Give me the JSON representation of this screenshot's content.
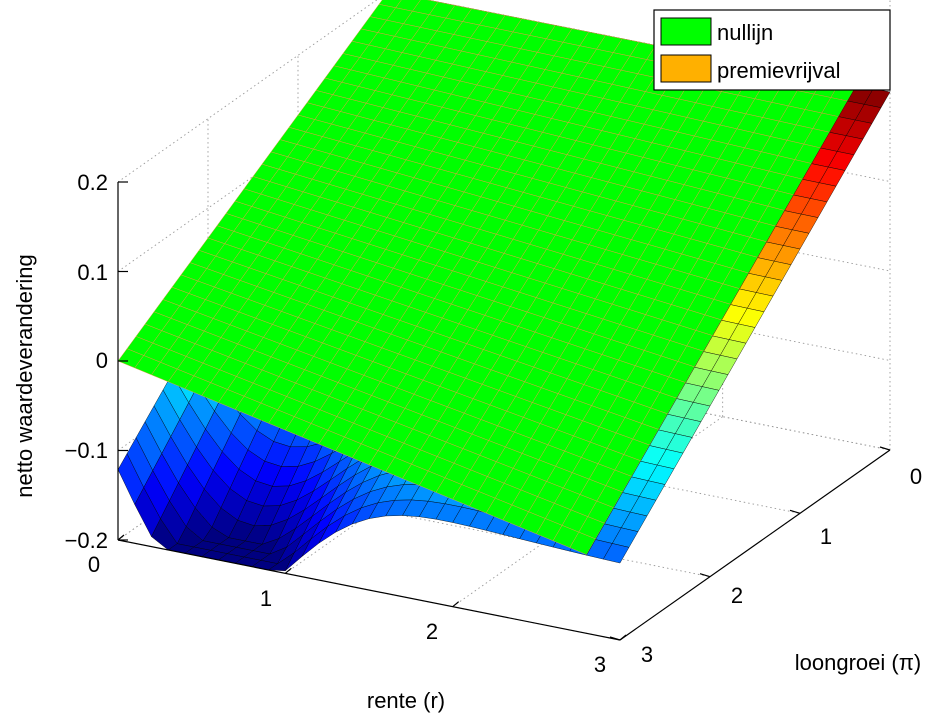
{
  "chart_data": {
    "type": "surface3d",
    "zlabel": "netto waardeverandering",
    "xlabel": "rente (r)",
    "ylabel": "loongroei (π)",
    "x_ticks": [
      "0",
      "1",
      "2",
      "3"
    ],
    "y_ticks": [
      "0",
      "1",
      "2",
      "3"
    ],
    "z_ticks": [
      "−0.2",
      "−0.1",
      "0",
      "0.1",
      "0.2"
    ],
    "xlim": [
      0,
      3
    ],
    "ylim": [
      0,
      3
    ],
    "zlim": [
      -0.2,
      0.2
    ],
    "grid": true,
    "legend_position": "top-right",
    "legend": [
      {
        "label": "nullijn",
        "color": "#00ff00"
      },
      {
        "label": "premievrijval",
        "color": "#ffb000"
      }
    ],
    "surface_description_points": [
      {
        "r": 0.0,
        "pi": 3.0,
        "z": 0.0
      },
      {
        "r": 0.5,
        "pi": 3.0,
        "z": -0.2
      },
      {
        "r": 3.0,
        "pi": 3.0,
        "z": -0.12
      },
      {
        "r": 0.0,
        "pi": 0.0,
        "z": 0.2
      },
      {
        "r": 3.0,
        "pi": 0.0,
        "z": 0.2
      }
    ],
    "colormap": "jet"
  }
}
